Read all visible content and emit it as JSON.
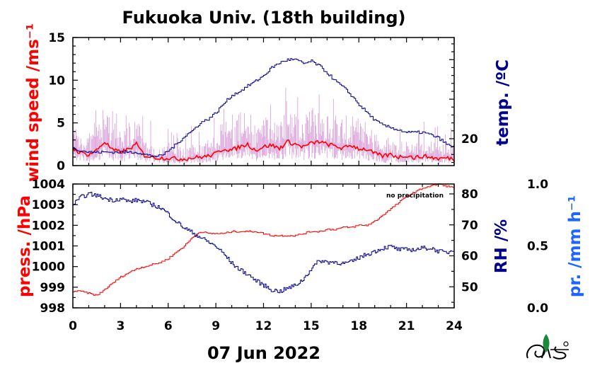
{
  "title": "Fukuoka Univ. (18th building)",
  "date_label": "07 Jun 2022",
  "annotation": "no precipitation",
  "colors": {
    "wind_raw": "#d89ad8",
    "wind_mean": "#ff0000",
    "temperature": "#00008b",
    "pressure": "#ff0000",
    "humidity": "#00008b",
    "precipitation": "#1e64ff"
  },
  "chart_data": [
    {
      "type": "line",
      "panel": "top",
      "x_range": [
        0,
        24
      ],
      "x_ticks": [
        "0",
        "3",
        "6",
        "9",
        "12",
        "15",
        "18",
        "21",
        "24"
      ],
      "left_axis": {
        "label": "wind speed /ms⁻¹",
        "range": [
          0,
          15
        ],
        "ticks": [
          "0",
          "5",
          "10",
          "15"
        ]
      },
      "right_axis": {
        "label": "temp. /ºC",
        "range": [
          16.6,
          32.8
        ],
        "ticks": [
          "20"
        ]
      },
      "series": [
        {
          "axis": "left",
          "x": [
            0,
            0.5,
            1,
            1.5,
            2,
            2.5,
            3,
            3.5,
            4,
            4.5,
            5,
            5.5,
            6,
            6.5,
            7,
            7.5,
            8,
            8.5,
            9,
            9.5,
            10,
            10.5,
            11,
            11.5,
            12,
            12.5,
            13,
            13.5,
            14,
            14.5,
            15,
            15.5,
            16,
            16.5,
            17,
            17.5,
            18,
            18.5,
            19,
            19.5,
            20,
            20.5,
            21,
            21.5,
            22,
            22.5,
            23,
            23.5,
            24
          ],
          "y": [
            2.0,
            1.5,
            1.3,
            1.8,
            2.8,
            1.8,
            1.6,
            1.9,
            2.5,
            1.2,
            1.0,
            0.9,
            0.9,
            0.8,
            0.8,
            0.9,
            1.0,
            1.1,
            1.4,
            2.0,
            1.8,
            2.2,
            2.5,
            1.8,
            2.2,
            2.4,
            2.0,
            2.8,
            2.5,
            2.2,
            2.6,
            2.8,
            2.5,
            2.3,
            2.0,
            2.4,
            2.0,
            1.9,
            1.4,
            1.1,
            1.3,
            1.0,
            1.2,
            0.9,
            1.1,
            1.0,
            0.8,
            0.9,
            0.8
          ]
        },
        {
          "axis": "right",
          "x": [
            0,
            0.5,
            1,
            1.5,
            2,
            2.5,
            3,
            3.5,
            4,
            4.5,
            5,
            5.5,
            6,
            6.5,
            7,
            7.5,
            8,
            8.5,
            9,
            9.5,
            10,
            10.5,
            11,
            11.5,
            12,
            12.5,
            13,
            13.5,
            14,
            14.5,
            15,
            15.5,
            16,
            16.5,
            17,
            17.5,
            18,
            18.5,
            19,
            19.5,
            20,
            20.5,
            21,
            21.5,
            22,
            22.5,
            23,
            23.5,
            24
          ],
          "y": [
            18.8,
            18.5,
            18.3,
            18.3,
            18.3,
            18.3,
            18.3,
            18.3,
            18.3,
            18.0,
            17.8,
            17.8,
            18.5,
            19.3,
            20.3,
            21.0,
            22.0,
            22.5,
            23.3,
            24.5,
            25.5,
            26.0,
            26.7,
            27.3,
            28.0,
            29.0,
            29.6,
            30.0,
            30.0,
            29.5,
            29.8,
            29.2,
            28.3,
            27.3,
            26.5,
            25.5,
            24.3,
            23.3,
            22.3,
            21.7,
            21.4,
            21.1,
            20.8,
            20.8,
            20.8,
            20.5,
            20.1,
            19.3,
            18.8
          ]
        }
      ]
    },
    {
      "type": "line",
      "panel": "bottom",
      "x_range": [
        0,
        24
      ],
      "x_ticks": [
        "0",
        "3",
        "6",
        "9",
        "12",
        "15",
        "18",
        "21",
        "24"
      ],
      "left_axis": {
        "label": "press. /hPa",
        "range": [
          998,
          1004
        ],
        "ticks": [
          "998",
          "999",
          "1000",
          "1001",
          "1002",
          "1003",
          "1004"
        ]
      },
      "right_axis": {
        "label": "RH /%",
        "range": [
          43.2,
          83.2
        ],
        "ticks": [
          "50",
          "60",
          "70",
          "80"
        ]
      },
      "third_axis": {
        "label": "pr. /mm h⁻¹",
        "range": [
          0,
          1
        ],
        "ticks": [
          "0.0",
          "0.5",
          "1.0"
        ]
      },
      "series": [
        {
          "axis": "left",
          "x": [
            0,
            0.5,
            1,
            1.5,
            2,
            2.5,
            3,
            3.5,
            4,
            4.5,
            5,
            5.5,
            6,
            6.5,
            7,
            7.5,
            8,
            8.5,
            9,
            9.5,
            10,
            10.5,
            11,
            11.5,
            12,
            12.5,
            13,
            13.5,
            14,
            14.5,
            15,
            15.5,
            16,
            16.5,
            17,
            17.5,
            18,
            18.5,
            19,
            19.5,
            20,
            20.5,
            21,
            21.5,
            22,
            22.5,
            23,
            23.5,
            24
          ],
          "y": [
            998.8,
            998.8,
            998.7,
            998.6,
            998.9,
            999.2,
            999.5,
            999.7,
            999.9,
            1000.0,
            1000.1,
            1000.2,
            1000.4,
            1000.7,
            1001.0,
            1001.4,
            1001.7,
            1001.6,
            1001.6,
            1001.6,
            1001.7,
            1001.7,
            1001.7,
            1001.7,
            1001.6,
            1001.5,
            1001.5,
            1001.5,
            1001.5,
            1001.6,
            1001.7,
            1001.7,
            1001.8,
            1001.8,
            1001.9,
            1001.9,
            1002.0,
            1002.0,
            1002.2,
            1002.5,
            1002.8,
            1003.1,
            1003.4,
            1003.6,
            1003.8,
            1003.9,
            1004.0,
            1003.9,
            1003.8
          ]
        },
        {
          "axis": "right",
          "x": [
            0,
            0.5,
            1,
            1.5,
            2,
            2.5,
            3,
            3.5,
            4,
            4.5,
            5,
            5.5,
            6,
            6.5,
            7,
            7.5,
            8,
            8.5,
            9,
            9.5,
            10,
            10.5,
            11,
            11.5,
            12,
            12.5,
            13,
            13.5,
            14,
            14.5,
            15,
            15.5,
            16,
            16.5,
            17,
            17.5,
            18,
            18.5,
            19,
            19.5,
            20,
            20.5,
            21,
            21.5,
            22,
            22.5,
            23,
            23.5,
            24
          ],
          "y": [
            76.5,
            79.0,
            80.0,
            79.5,
            78.5,
            78.0,
            78.5,
            77.5,
            78.0,
            77.5,
            76.5,
            75.5,
            73.5,
            71.0,
            69.0,
            67.5,
            66.0,
            64.5,
            63.0,
            60.5,
            57.5,
            55.5,
            54.0,
            52.0,
            50.5,
            49.0,
            48.5,
            49.5,
            50.5,
            52.5,
            56.0,
            58.5,
            58.0,
            58.0,
            57.5,
            58.0,
            59.5,
            60.5,
            61.5,
            62.5,
            63.0,
            62.0,
            62.0,
            62.0,
            62.5,
            62.5,
            61.5,
            61.0,
            62.0
          ]
        },
        {
          "axis": "third",
          "x": [
            0,
            24
          ],
          "y": [
            0,
            0
          ]
        }
      ]
    }
  ]
}
